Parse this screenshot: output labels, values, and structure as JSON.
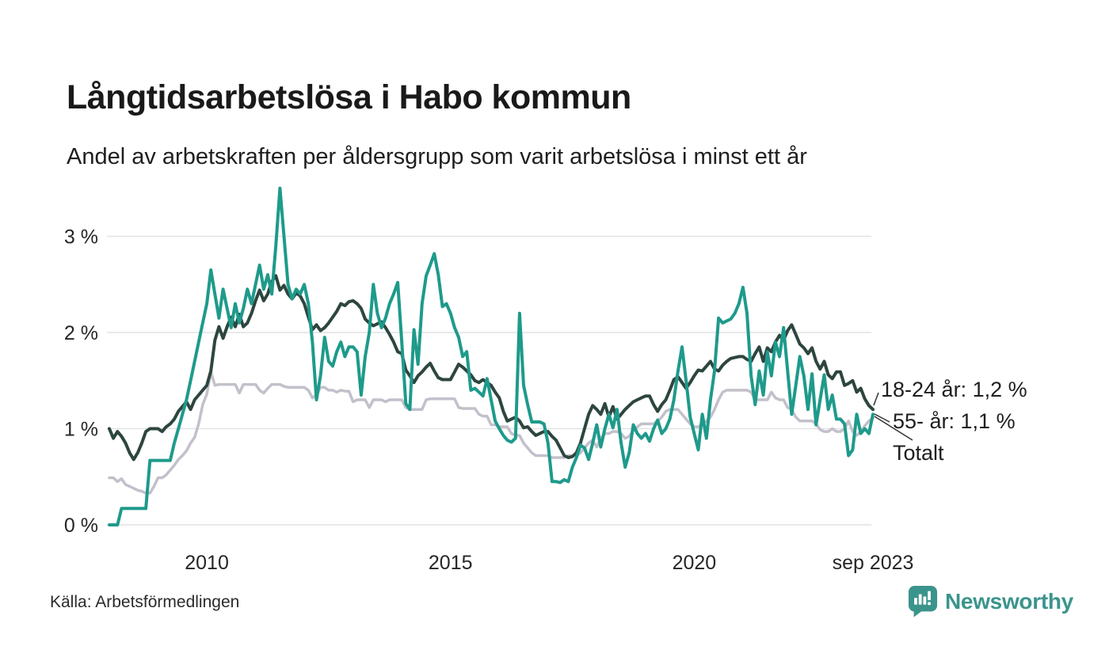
{
  "header": {
    "title": "Långtidsarbetslösa i Habo kommun",
    "subtitle": "Andel av arbetskraften per åldersgrupp som varit arbetslösa i minst ett år"
  },
  "chart_data": {
    "type": "line",
    "unit": "%",
    "frequency": "monthly",
    "x_start": "2008-01",
    "x_end": "2023-09",
    "ylim": [
      0,
      3.6
    ],
    "grid": "horizontal",
    "y_ticks": [
      {
        "value": 0,
        "label": "0 %"
      },
      {
        "value": 1,
        "label": "1 %"
      },
      {
        "value": 2,
        "label": "2 %"
      },
      {
        "value": 3,
        "label": "3 %"
      }
    ],
    "x_ticks": [
      {
        "month_index": 24,
        "label": "2010"
      },
      {
        "month_index": 84,
        "label": "2015"
      },
      {
        "month_index": 144,
        "label": "2020"
      },
      {
        "month_index": 188,
        "label": "sep 2023"
      }
    ],
    "series": [
      {
        "name": "18-24 år",
        "color": "#1e9a8b",
        "last_value_label": "1,2 %",
        "values": [
          0,
          0,
          0,
          0.17,
          0.17,
          0.17,
          0.17,
          0.17,
          0.17,
          0.17,
          0.67,
          0.67,
          0.67,
          0.67,
          0.67,
          0.67,
          0.85,
          1.0,
          1.15,
          1.3,
          1.5,
          1.7,
          1.9,
          2.1,
          2.3,
          2.65,
          2.4,
          2.15,
          2.45,
          2.25,
          2.05,
          2.3,
          2.1,
          2.25,
          2.45,
          2.3,
          2.5,
          2.7,
          2.45,
          2.6,
          2.4,
          2.9,
          3.5,
          3.0,
          2.5,
          2.35,
          2.45,
          2.4,
          2.5,
          2.3,
          1.9,
          1.3,
          1.55,
          1.95,
          1.7,
          1.65,
          1.8,
          1.9,
          1.75,
          1.85,
          1.85,
          1.8,
          1.35,
          1.75,
          2.0,
          2.5,
          2.2,
          2.05,
          2.15,
          2.3,
          2.4,
          2.52,
          1.9,
          1.26,
          1.2,
          2.03,
          1.67,
          2.3,
          2.59,
          2.7,
          2.82,
          2.6,
          2.27,
          2.3,
          2.2,
          2.05,
          1.95,
          1.75,
          1.8,
          1.4,
          1.42,
          1.38,
          1.34,
          1.52,
          1.3,
          1.08,
          1.0,
          0.93,
          0.88,
          0.86,
          0.9,
          2.2,
          1.45,
          1.25,
          1.07,
          1.07,
          1.07,
          1.05,
          0.85,
          0.45,
          0.45,
          0.44,
          0.47,
          0.45,
          0.6,
          0.7,
          0.83,
          0.8,
          0.68,
          0.85,
          1.04,
          0.81,
          1.0,
          1.15,
          1.01,
          1.2,
          0.85,
          0.6,
          0.75,
          1.04,
          0.95,
          0.9,
          0.95,
          0.87,
          1.0,
          1.09,
          0.95,
          1.0,
          1.1,
          1.3,
          1.6,
          1.85,
          1.5,
          1.12,
          0.95,
          0.78,
          1.15,
          0.9,
          1.3,
          1.6,
          2.15,
          2.1,
          2.12,
          2.14,
          2.2,
          2.3,
          2.47,
          2.2,
          1.55,
          1.25,
          1.6,
          1.35,
          1.8,
          1.55,
          1.9,
          1.75,
          2.05,
          1.6,
          1.15,
          1.45,
          1.75,
          1.55,
          1.2,
          1.57,
          1.04,
          1.3,
          1.56,
          1.2,
          1.35,
          1.1,
          1.1,
          1.05,
          0.72,
          0.78,
          1.15,
          0.95,
          1.0,
          0.95,
          1.15
        ]
      },
      {
        "name": "55- år",
        "color": "#c3c0cb",
        "last_value_label": "1,1 %",
        "values": [
          0.49,
          0.49,
          0.45,
          0.48,
          0.42,
          0.4,
          0.38,
          0.36,
          0.35,
          0.33,
          0.33,
          0.4,
          0.49,
          0.49,
          0.52,
          0.57,
          0.62,
          0.68,
          0.72,
          0.77,
          0.85,
          0.91,
          1.05,
          1.25,
          1.36,
          1.59,
          1.45,
          1.46,
          1.46,
          1.46,
          1.46,
          1.46,
          1.37,
          1.46,
          1.46,
          1.46,
          1.46,
          1.4,
          1.37,
          1.42,
          1.46,
          1.46,
          1.46,
          1.44,
          1.43,
          1.43,
          1.43,
          1.43,
          1.43,
          1.4,
          1.32,
          1.35,
          1.43,
          1.43,
          1.4,
          1.4,
          1.38,
          1.4,
          1.39,
          1.39,
          1.28,
          1.3,
          1.3,
          1.3,
          1.22,
          1.3,
          1.3,
          1.3,
          1.28,
          1.3,
          1.3,
          1.3,
          1.3,
          1.22,
          1.2,
          1.2,
          1.2,
          1.2,
          1.3,
          1.31,
          1.31,
          1.31,
          1.31,
          1.31,
          1.31,
          1.31,
          1.22,
          1.21,
          1.21,
          1.21,
          1.21,
          1.15,
          1.13,
          1.13,
          1.04,
          1.04,
          1.02,
          1.02,
          1.02,
          0.95,
          0.93,
          0.93,
          0.85,
          0.8,
          0.75,
          0.72,
          0.72,
          0.72,
          0.72,
          0.7,
          0.7,
          0.7,
          0.7,
          0.72,
          0.72,
          0.72,
          0.75,
          0.8,
          0.85,
          0.88,
          0.81,
          0.9,
          0.95,
          0.95,
          0.97,
          0.97,
          0.95,
          0.9,
          0.92,
          0.98,
          1.02,
          1.05,
          1.05,
          1.05,
          1.05,
          1.08,
          1.12,
          1.18,
          1.2,
          1.2,
          1.2,
          1.15,
          1.1,
          1.05,
          1.02,
          1.02,
          1.05,
          1.08,
          1.12,
          1.2,
          1.3,
          1.38,
          1.4,
          1.4,
          1.4,
          1.4,
          1.4,
          1.4,
          1.38,
          1.3,
          1.3,
          1.3,
          1.3,
          1.38,
          1.32,
          1.3,
          1.3,
          1.22,
          1.2,
          1.12,
          1.08,
          1.08,
          1.08,
          1.08,
          1.05,
          0.99,
          0.97,
          0.97,
          1.0,
          0.97,
          0.97,
          1.0,
          1.08,
          0.97,
          0.93,
          0.97,
          1.03,
          1.08,
          1.11
        ]
      },
      {
        "name": "Totalt",
        "color": "#2d463f",
        "last_value_label": "",
        "values": [
          1.0,
          0.9,
          0.97,
          0.92,
          0.85,
          0.75,
          0.68,
          0.75,
          0.85,
          0.97,
          1.0,
          1.0,
          1.0,
          0.97,
          1.02,
          1.05,
          1.1,
          1.18,
          1.23,
          1.28,
          1.2,
          1.3,
          1.35,
          1.4,
          1.45,
          1.6,
          1.92,
          2.06,
          1.94,
          2.06,
          2.16,
          2.06,
          2.19,
          2.06,
          2.1,
          2.2,
          2.33,
          2.44,
          2.33,
          2.4,
          2.53,
          2.59,
          2.44,
          2.49,
          2.4,
          2.35,
          2.41,
          2.38,
          2.3,
          2.16,
          2.03,
          2.08,
          2.02,
          2.05,
          2.1,
          2.16,
          2.22,
          2.3,
          2.28,
          2.32,
          2.33,
          2.3,
          2.25,
          2.14,
          2.1,
          2.07,
          2.09,
          2.11,
          2.05,
          1.98,
          1.9,
          1.8,
          1.78,
          1.61,
          1.55,
          1.48,
          1.55,
          1.59,
          1.64,
          1.68,
          1.6,
          1.53,
          1.51,
          1.51,
          1.51,
          1.59,
          1.67,
          1.64,
          1.6,
          1.56,
          1.5,
          1.48,
          1.51,
          1.48,
          1.45,
          1.38,
          1.32,
          1.18,
          1.08,
          1.1,
          1.12,
          1.08,
          1.01,
          1.02,
          0.97,
          0.93,
          0.95,
          0.97,
          0.97,
          0.92,
          0.88,
          0.8,
          0.72,
          0.7,
          0.71,
          0.75,
          0.85,
          1.0,
          1.15,
          1.24,
          1.2,
          1.15,
          1.26,
          1.12,
          1.23,
          1.1,
          1.15,
          1.2,
          1.24,
          1.28,
          1.3,
          1.32,
          1.34,
          1.34,
          1.25,
          1.18,
          1.25,
          1.3,
          1.4,
          1.51,
          1.54,
          1.48,
          1.42,
          1.48,
          1.55,
          1.61,
          1.6,
          1.65,
          1.7,
          1.62,
          1.6,
          1.66,
          1.7,
          1.73,
          1.74,
          1.75,
          1.75,
          1.72,
          1.7,
          1.78,
          1.85,
          1.7,
          1.84,
          1.8,
          1.9,
          1.97,
          1.92,
          2.02,
          2.08,
          1.98,
          1.88,
          1.84,
          1.78,
          1.84,
          1.7,
          1.62,
          1.7,
          1.56,
          1.52,
          1.59,
          1.59,
          1.45,
          1.47,
          1.5,
          1.38,
          1.42,
          1.31,
          1.24,
          1.2
        ]
      }
    ]
  },
  "annotations": [
    {
      "text": "18-24 år: 1,2 %"
    },
    {
      "text": "55- år: 1,1 %"
    },
    {
      "text": "Totalt"
    }
  ],
  "footer": {
    "source": "Källa: Arbetsförmedlingen",
    "brand": "Newsworthy"
  },
  "icons": {
    "brand_logo": "newsworthy-bar-chart-bubble",
    "brand_color": "#3b948c"
  }
}
